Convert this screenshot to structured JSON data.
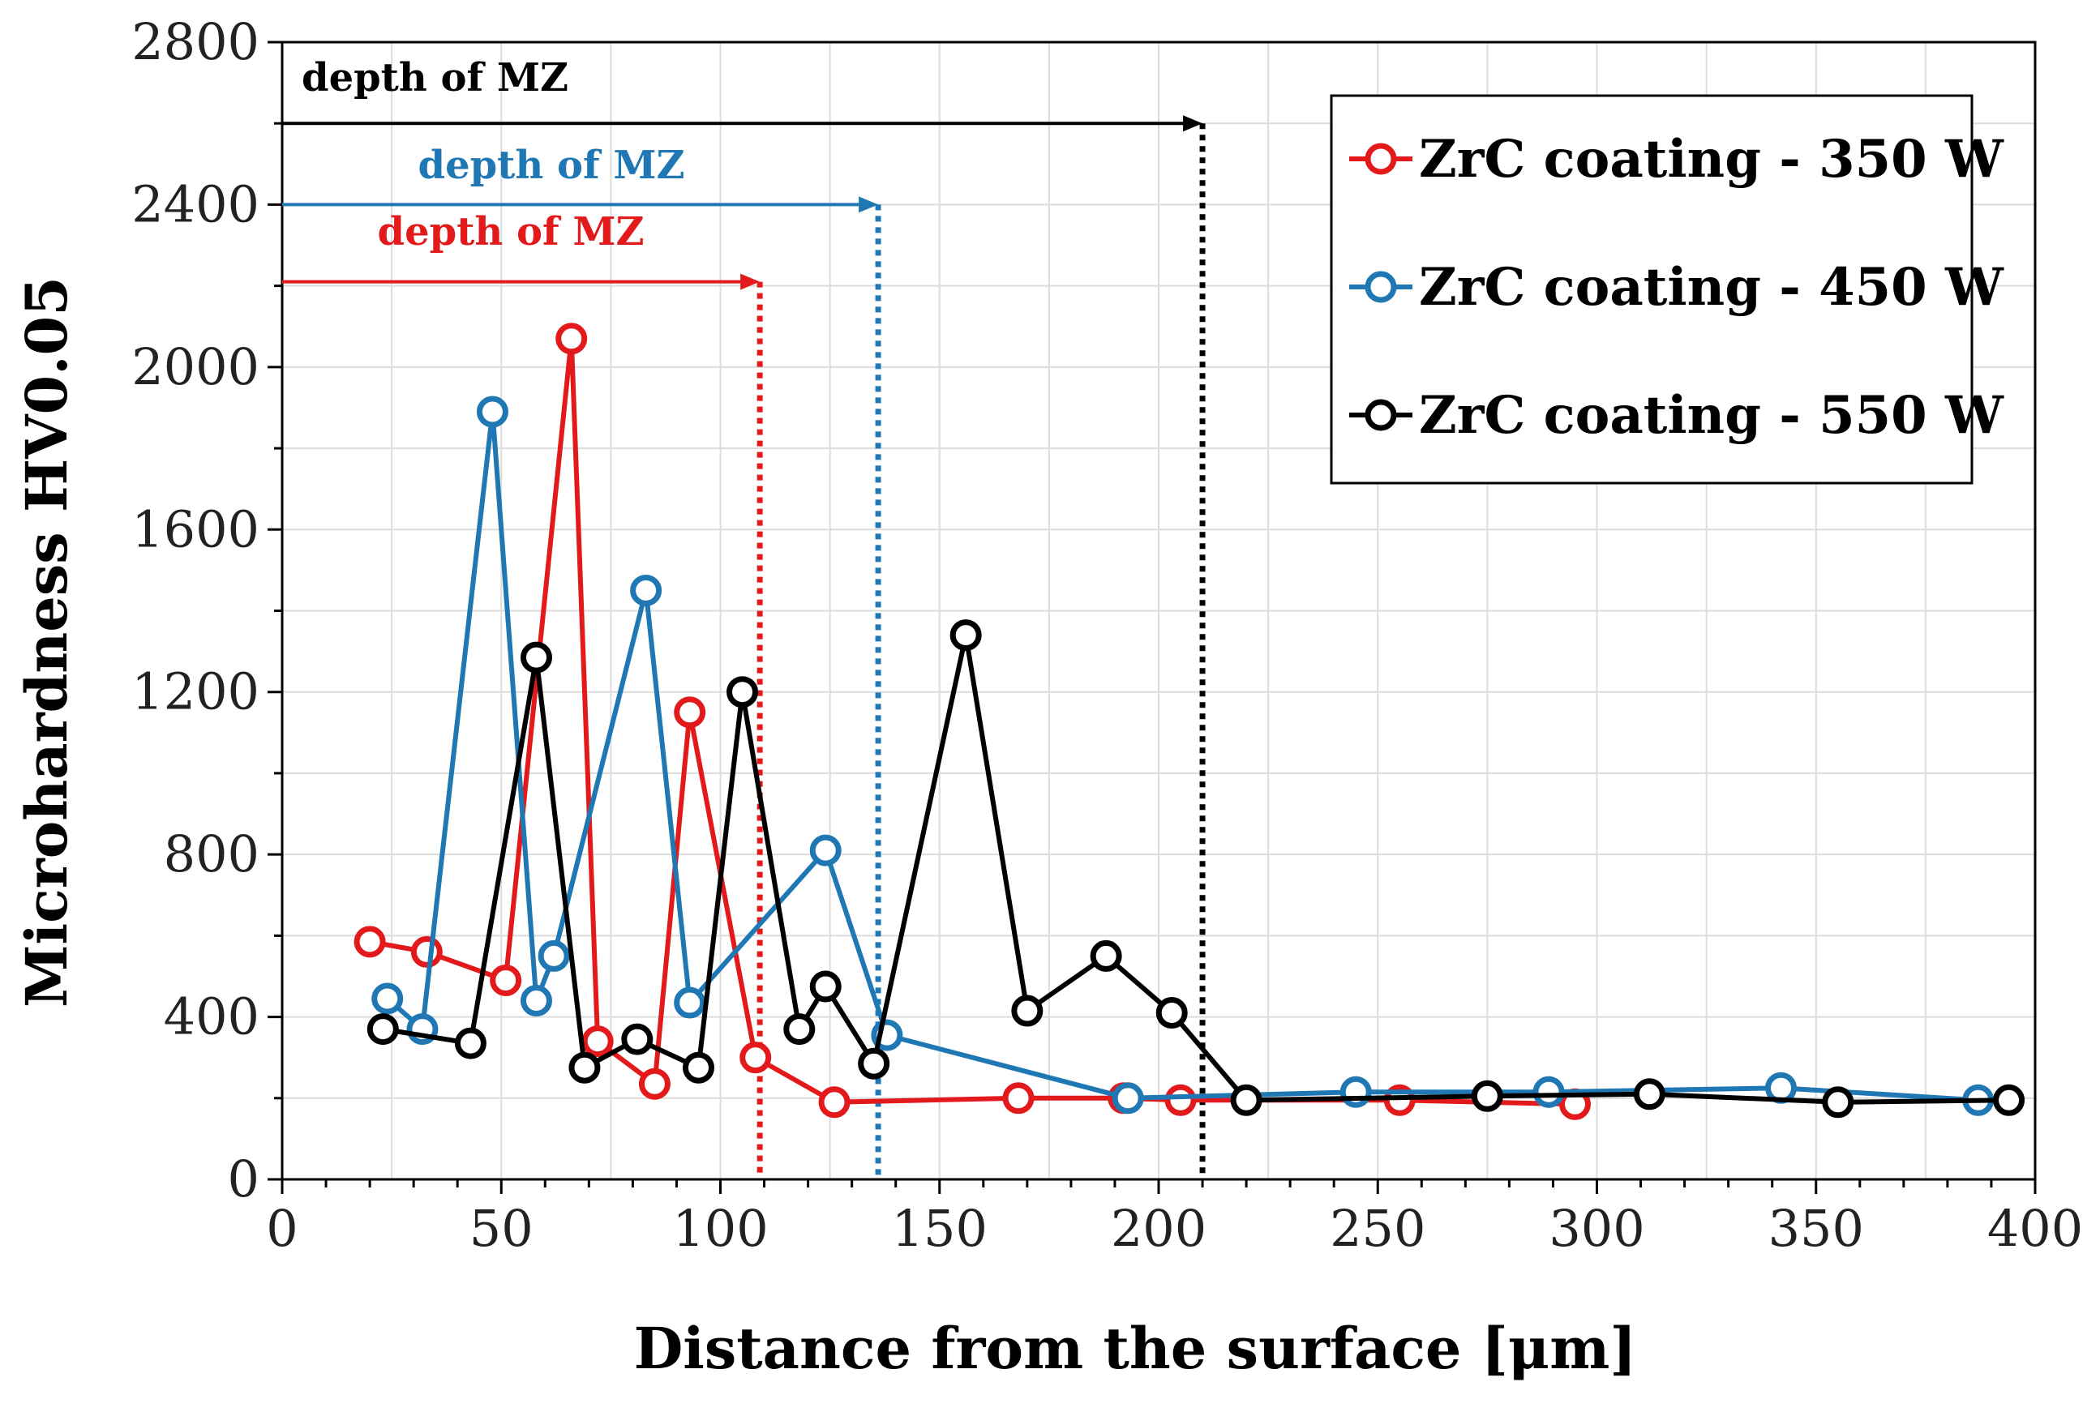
{
  "chart_data": {
    "type": "line",
    "title": "",
    "xlabel": "Distance from the surface [μm]",
    "ylabel": "Microhardness HV0.05",
    "xlim": [
      0,
      400
    ],
    "ylim": [
      0,
      2800
    ],
    "xticks": [
      0,
      50,
      100,
      150,
      200,
      250,
      300,
      350,
      400
    ],
    "yticks": [
      0,
      400,
      800,
      1200,
      1600,
      2000,
      2400,
      2800
    ],
    "grid": true,
    "legend_position": "top-right",
    "series": [
      {
        "name": "ZrC coating - 350 W",
        "color": "#e31a1c",
        "x": [
          20,
          33,
          51,
          66,
          72,
          85,
          93,
          108,
          126,
          168,
          192,
          205,
          255,
          295
        ],
        "y": [
          585,
          560,
          490,
          2070,
          340,
          235,
          1150,
          300,
          190,
          200,
          200,
          195,
          195,
          185
        ]
      },
      {
        "name": "ZrC coating - 450 W",
        "color": "#1f78b4",
        "x": [
          24,
          32,
          48,
          58,
          62,
          83,
          93,
          124,
          138,
          193,
          245,
          289,
          342,
          387
        ],
        "y": [
          445,
          370,
          1890,
          440,
          550,
          1450,
          435,
          810,
          355,
          200,
          215,
          215,
          225,
          195
        ]
      },
      {
        "name": "ZrC coating - 550 W",
        "color": "#000000",
        "x": [
          23,
          43,
          58,
          69,
          81,
          95,
          105,
          118,
          124,
          135,
          156,
          170,
          188,
          203,
          220,
          275,
          312,
          355,
          394
        ],
        "y": [
          370,
          335,
          1285,
          275,
          345,
          275,
          1200,
          370,
          475,
          285,
          1340,
          415,
          550,
          410,
          195,
          205,
          210,
          190,
          195
        ]
      }
    ],
    "annotations": [
      {
        "text": "depth of MZ",
        "color": "#000000",
        "arrow_y": 2600,
        "depth_x": 210
      },
      {
        "text": "depth of MZ",
        "color": "#1f78b4",
        "arrow_y": 2400,
        "depth_x": 136
      },
      {
        "text": "depth of MZ",
        "color": "#e31a1c",
        "arrow_y": 2210,
        "depth_x": 109
      }
    ]
  }
}
